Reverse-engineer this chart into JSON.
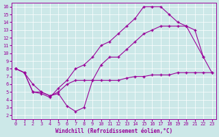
{
  "bg_color": "#cce8e8",
  "line_color": "#990099",
  "xlabel": "Windchill (Refroidissement éolien,°C)",
  "xlim": [
    -0.5,
    23.5
  ],
  "ylim": [
    1.5,
    16.5
  ],
  "xticks": [
    0,
    1,
    2,
    3,
    4,
    5,
    6,
    7,
    8,
    9,
    10,
    11,
    12,
    13,
    14,
    15,
    16,
    17,
    18,
    19,
    20,
    21,
    22,
    23
  ],
  "yticks": [
    2,
    3,
    4,
    5,
    6,
    7,
    8,
    9,
    10,
    11,
    12,
    13,
    14,
    15,
    16
  ],
  "line1_x": [
    0,
    1,
    2,
    3,
    4,
    5,
    6,
    7,
    8,
    9,
    10,
    11,
    12,
    13,
    14,
    15,
    16,
    17,
    18,
    19,
    20,
    21,
    22
  ],
  "line1_y": [
    8.0,
    7.5,
    5.0,
    4.8,
    4.3,
    5.5,
    6.5,
    8.0,
    8.5,
    9.5,
    11.0,
    11.5,
    12.5,
    13.5,
    14.5,
    16.0,
    16.0,
    16.0,
    15.0,
    14.0,
    13.5,
    null,
    9.5
  ],
  "line2_x": [
    0,
    1,
    2,
    3,
    4,
    5,
    6,
    7,
    8,
    9,
    10,
    11,
    12,
    13,
    14,
    15,
    16,
    17,
    18,
    19,
    20,
    21,
    22,
    23
  ],
  "line2_y": [
    8.0,
    7.5,
    5.0,
    5.0,
    4.5,
    4.8,
    3.2,
    2.5,
    3.0,
    6.5,
    8.5,
    9.5,
    9.5,
    10.5,
    11.5,
    12.5,
    13.0,
    13.5,
    13.5,
    13.5,
    13.5,
    13.0,
    9.5,
    7.5
  ],
  "line3_x": [
    0,
    1,
    2,
    3,
    4,
    5,
    6,
    7,
    8,
    9,
    10,
    11,
    12,
    13,
    14,
    15,
    16,
    17,
    18,
    19,
    20,
    21,
    22,
    23
  ],
  "line3_y": [
    8.0,
    7.5,
    6.0,
    5.0,
    4.5,
    5.0,
    6.0,
    6.5,
    6.5,
    6.5,
    6.5,
    6.5,
    6.5,
    6.8,
    7.0,
    7.0,
    7.2,
    7.2,
    7.2,
    7.5,
    7.5,
    7.5,
    7.5,
    7.5
  ]
}
